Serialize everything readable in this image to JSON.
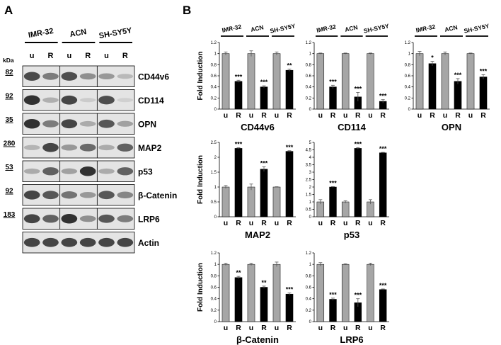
{
  "figure": {
    "panel_a_label": "A",
    "panel_b_label": "B"
  },
  "blot": {
    "cell_lines": [
      "IMR-32",
      "ACN",
      "SH-SY5Y"
    ],
    "lanes": [
      "u",
      "R",
      "u",
      "R",
      "u",
      "R"
    ],
    "kda_label": "kDa",
    "rows": [
      {
        "protein": "CD44v6",
        "kda": "82",
        "intensity": [
          0.82,
          0.55,
          0.8,
          0.45,
          0.4,
          0.22
        ]
      },
      {
        "protein": "CD114",
        "kda": "92",
        "intensity": [
          0.95,
          0.28,
          0.85,
          0.12,
          0.8,
          0.1
        ]
      },
      {
        "protein": "OPN",
        "kda": "35",
        "intensity": [
          0.95,
          0.55,
          0.85,
          0.3,
          0.75,
          0.35
        ]
      },
      {
        "protein": "MAP2",
        "kda": "280",
        "intensity": [
          0.25,
          0.85,
          0.4,
          0.65,
          0.3,
          0.7
        ]
      },
      {
        "protein": "p53",
        "kda": "53",
        "intensity": [
          0.3,
          0.7,
          0.35,
          0.95,
          0.3,
          0.7
        ]
      },
      {
        "protein": "β-Catenin",
        "kda": "92",
        "intensity": [
          0.85,
          0.75,
          0.6,
          0.4,
          0.75,
          0.5
        ]
      },
      {
        "protein": "LRP6",
        "kda": "183",
        "intensity": [
          0.85,
          0.7,
          0.95,
          0.45,
          0.75,
          0.55
        ]
      },
      {
        "protein": "Actin",
        "kda": "",
        "intensity": [
          0.85,
          0.85,
          0.85,
          0.85,
          0.85,
          0.85
        ]
      }
    ]
  },
  "chart_data": [
    {
      "type": "bar",
      "title": "CD44v6",
      "ylabel": "Fold Induction",
      "categories": [
        "u",
        "R",
        "u",
        "R",
        "u",
        "R"
      ],
      "groups": [
        "IMR-32",
        "ACN",
        "SH-SY5Y"
      ],
      "ylim": [
        0,
        1.2
      ],
      "ticks": [
        "0",
        "0.2",
        "0.4",
        "0.6",
        "0.8",
        "1",
        "1.2"
      ],
      "values": [
        1.0,
        0.5,
        1.0,
        0.4,
        1.0,
        0.7
      ],
      "errors": [
        0.03,
        0.02,
        0.05,
        0.02,
        0.03,
        0.02
      ],
      "stars": [
        "",
        "***",
        "",
        "***",
        "",
        "**"
      ]
    },
    {
      "type": "bar",
      "title": "CD114",
      "ylabel": "",
      "categories": [
        "u",
        "R",
        "u",
        "R",
        "u",
        "R"
      ],
      "groups": [
        "IMR-32",
        "ACN",
        "SH-SY5Y"
      ],
      "ylim": [
        0,
        1.2
      ],
      "ticks": [
        "0",
        "0.2",
        "0.4",
        "0.6",
        "0.8",
        "1",
        "1.2"
      ],
      "values": [
        1.0,
        0.4,
        1.0,
        0.22,
        1.0,
        0.14
      ],
      "errors": [
        0.01,
        0.03,
        0.01,
        0.08,
        0.01,
        0.03
      ],
      "stars": [
        "",
        "***",
        "",
        "***",
        "",
        "***"
      ]
    },
    {
      "type": "bar",
      "title": "OPN",
      "ylabel": "",
      "categories": [
        "u",
        "R",
        "u",
        "R",
        "u",
        "R"
      ],
      "groups": [
        "IMR-32",
        "ACN",
        "SH-SY5Y"
      ],
      "ylim": [
        0,
        1.2
      ],
      "ticks": [
        "0",
        "0.2",
        "0.4",
        "0.6",
        "0.8",
        "1",
        "1.2"
      ],
      "values": [
        1.0,
        0.82,
        1.0,
        0.5,
        1.0,
        0.58
      ],
      "errors": [
        0.04,
        0.04,
        0.03,
        0.05,
        0.01,
        0.04
      ],
      "stars": [
        "",
        "*",
        "",
        "***",
        "",
        "***"
      ]
    },
    {
      "type": "bar",
      "title": "MAP2",
      "ylabel": "Fold Induction",
      "categories": [
        "u",
        "R",
        "u",
        "R",
        "u",
        "R"
      ],
      "ylim": [
        0,
        2.5
      ],
      "ticks": [
        "0",
        "0.5",
        "1",
        "1.5",
        "2",
        "2.5"
      ],
      "values": [
        1.0,
        2.3,
        1.0,
        1.6,
        1.0,
        2.2
      ],
      "errors": [
        0.05,
        0.02,
        0.1,
        0.08,
        0.01,
        0.02
      ],
      "stars": [
        "",
        "***",
        "",
        "***",
        "",
        "***"
      ]
    },
    {
      "type": "bar",
      "title": "p53",
      "ylabel": "",
      "categories": [
        "u",
        "R",
        "u",
        "R",
        "u",
        "R"
      ],
      "ylim": [
        0,
        5
      ],
      "ticks": [
        "0",
        "0.5",
        "1",
        "1.5",
        "2",
        "2.5",
        "3",
        "3.5",
        "4",
        "4.5",
        "5"
      ],
      "values": [
        1.0,
        2.0,
        1.0,
        4.6,
        1.0,
        4.3
      ],
      "errors": [
        0.15,
        0.03,
        0.08,
        0.05,
        0.15,
        0.03
      ],
      "stars": [
        "",
        "***",
        "",
        "***",
        "",
        "***"
      ]
    },
    {
      "type": "bar",
      "title": "β-Catenin",
      "ylabel": "Fold Induction",
      "categories": [
        "u",
        "R",
        "u",
        "R",
        "u",
        "R"
      ],
      "ylim": [
        0,
        1.2
      ],
      "ticks": [
        "0",
        "0.2",
        "0.4",
        "0.6",
        "0.8",
        "1",
        "1.2"
      ],
      "values": [
        1.0,
        0.77,
        1.0,
        0.6,
        1.0,
        0.48
      ],
      "errors": [
        0.02,
        0.02,
        0.02,
        0.02,
        0.04,
        0.02
      ],
      "stars": [
        "",
        "**",
        "",
        "**",
        "",
        "***"
      ]
    },
    {
      "type": "bar",
      "title": "LRP6",
      "ylabel": "",
      "categories": [
        "u",
        "R",
        "u",
        "R",
        "u",
        "R"
      ],
      "ylim": [
        0,
        1.2
      ],
      "ticks": [
        "0",
        "0.2",
        "0.4",
        "0.6",
        "0.8",
        "1",
        "1.2"
      ],
      "values": [
        1.0,
        0.39,
        1.0,
        0.33,
        1.0,
        0.56
      ],
      "errors": [
        0.03,
        0.02,
        0.01,
        0.07,
        0.02,
        0.01
      ],
      "stars": [
        "",
        "***",
        "",
        "***",
        "",
        "***"
      ]
    }
  ],
  "colors": {
    "untreated_bar": "#a6a6a6",
    "treated_bar": "#000000",
    "blot_bg": "#e4e4e4"
  }
}
